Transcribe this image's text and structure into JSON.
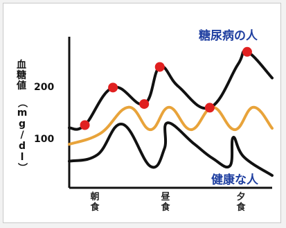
{
  "chart_data": {
    "type": "line",
    "ylabel_main": "血糖値",
    "ylabel_unit": "（mg/dl）",
    "yticks": [
      {
        "value": 200,
        "label": "200"
      },
      {
        "value": 100,
        "label": "100"
      }
    ],
    "ylim": [
      0,
      330
    ],
    "categories": [
      "朝食",
      "昼食",
      "夕食"
    ],
    "series": [
      {
        "name": "糖尿病の人",
        "color": "#111111",
        "marker_color": "#e02020",
        "x": [
          0,
          0.5,
          1.4,
          2.4,
          2.9,
          3.5,
          4.5,
          5.4,
          5.7,
          6.5
        ],
        "y": [
          131,
          137,
          219,
          183,
          264,
          221,
          175,
          269,
          297,
          240
        ],
        "markers": [
          {
            "x": 0.5,
            "y": 137
          },
          {
            "x": 1.4,
            "y": 219
          },
          {
            "x": 2.4,
            "y": 183
          },
          {
            "x": 2.9,
            "y": 264
          },
          {
            "x": 4.5,
            "y": 175
          },
          {
            "x": 5.7,
            "y": 297
          }
        ]
      },
      {
        "name": "",
        "color": "#e8a33a",
        "x": [
          0,
          1.0,
          1.9,
          2.6,
          3.2,
          3.9,
          4.6,
          5.3,
          5.9,
          6.5
        ],
        "y": [
          95,
          119,
          176,
          127,
          176,
          127,
          176,
          127,
          176,
          130
        ],
        "markers": []
      },
      {
        "name": "健康な人",
        "color": "#111111",
        "x": [
          0,
          0.9,
          1.7,
          2.6,
          3.05,
          3.15,
          4.0,
          4.6,
          5.15,
          5.25,
          5.6,
          6.5
        ],
        "y": [
          58,
          72,
          139,
          47,
          86,
          142,
          96,
          64,
          48,
          110,
          67,
          27
        ],
        "markers": []
      }
    ],
    "grid": false
  }
}
